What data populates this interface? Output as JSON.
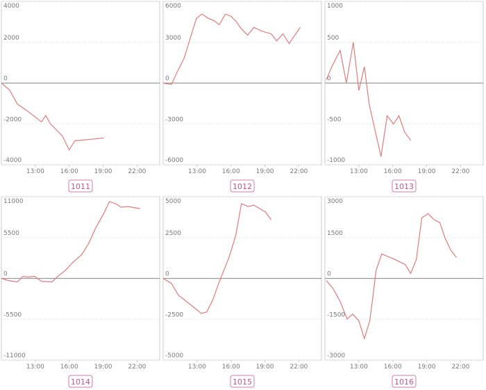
{
  "chart_data": [
    {
      "type": "line",
      "title": "1011",
      "color": "#e07b7b",
      "x": [
        10,
        10.73,
        11.41,
        12.33,
        13.55,
        13.92,
        14.35,
        15.39,
        16.0,
        16.49,
        19.06
      ],
      "values": [
        0,
        -345,
        -1030,
        -1380,
        -1900,
        -1590,
        -2000,
        -2590,
        -3280,
        -2830,
        -2690
      ],
      "xlim": [
        10,
        24
      ],
      "xticks": [
        {
          "value": 13,
          "label": "13:00"
        },
        {
          "value": 16,
          "label": "16:00"
        },
        {
          "value": 19,
          "label": "19:00"
        },
        {
          "value": 22,
          "label": "22:00"
        }
      ],
      "ylim": [
        -4000,
        4000
      ],
      "yticks": [
        -4000,
        -2000,
        0,
        2000,
        4000
      ],
      "grid": true
    },
    {
      "type": "line",
      "title": "1012",
      "color": "#e07b7b",
      "x": [
        10,
        10.73,
        11.22,
        11.84,
        12.94,
        13.43,
        13.98,
        14.47,
        14.96,
        15.51,
        16.0,
        16.43,
        16.92,
        17.47,
        18.02,
        18.57,
        19.06,
        19.55,
        20.04,
        20.59,
        21.14,
        22.12
      ],
      "values": [
        0,
        -100,
        780,
        1800,
        4760,
        5070,
        4760,
        4600,
        4290,
        5070,
        4900,
        4550,
        3980,
        3520,
        4090,
        3880,
        3720,
        3620,
        3100,
        3620,
        2900,
        4090
      ],
      "xlim": [
        10,
        24
      ],
      "xticks": [
        {
          "value": 13,
          "label": "13:00"
        },
        {
          "value": 16,
          "label": "16:00"
        },
        {
          "value": 19,
          "label": "19:00"
        },
        {
          "value": 22,
          "label": "22:00"
        }
      ],
      "ylim": [
        -6000,
        6000
      ],
      "yticks": [
        -6000,
        -3000,
        0,
        3000,
        6000
      ],
      "grid": true
    },
    {
      "type": "line",
      "title": "1013",
      "color": "#e07b7b",
      "x": [
        10.12,
        10.61,
        11.35,
        11.9,
        12.51,
        13.0,
        13.49,
        13.92,
        14.96,
        15.51,
        16.06,
        16.55,
        17.04,
        17.59
      ],
      "values": [
        40,
        200,
        400,
        0,
        500,
        -90,
        200,
        -260,
        -900,
        -400,
        -500,
        -400,
        -600,
        -700
      ],
      "xlim": [
        10,
        24
      ],
      "xticks": [
        {
          "value": 13,
          "label": "13:00"
        },
        {
          "value": 16,
          "label": "16:00"
        },
        {
          "value": 19,
          "label": "19:00"
        },
        {
          "value": 22,
          "label": "22:00"
        }
      ],
      "ylim": [
        -1000,
        1000
      ],
      "yticks": [
        -1000,
        -500,
        0,
        500,
        1000
      ],
      "grid": true
    },
    {
      "type": "line",
      "title": "1014",
      "color": "#e07b7b",
      "x": [
        10,
        10.61,
        11.41,
        11.9,
        12.33,
        12.94,
        13.55,
        14.47,
        15.08,
        15.69,
        16.31,
        17.1,
        17.72,
        18.33,
        19.06,
        19.55,
        20.1,
        20.59,
        21.21,
        22.25
      ],
      "values": [
        0,
        -280,
        -470,
        280,
        190,
        280,
        -380,
        -470,
        380,
        1130,
        2160,
        3200,
        4700,
        6770,
        8740,
        10340,
        10060,
        9590,
        9680,
        9400
      ],
      "xlim": [
        10,
        24
      ],
      "xticks": [
        {
          "value": 13,
          "label": "13:00"
        },
        {
          "value": 16,
          "label": "16:00"
        },
        {
          "value": 19,
          "label": "19:00"
        },
        {
          "value": 22,
          "label": "22:00"
        }
      ],
      "ylim": [
        -11000,
        11000
      ],
      "yticks": [
        -11000,
        -5500,
        0,
        5500,
        11000
      ],
      "grid": true
    },
    {
      "type": "line",
      "title": "1015",
      "color": "#e07b7b",
      "x": [
        10,
        10.73,
        11.35,
        12.45,
        13.37,
        13.86,
        14.41,
        14.96,
        15.82,
        16.43,
        16.92,
        17.53,
        18.02,
        19.06,
        19.55
      ],
      "values": [
        0,
        -300,
        -1030,
        -1620,
        -2140,
        -2050,
        -1280,
        -210,
        1280,
        2650,
        4570,
        4400,
        4490,
        4060,
        3590
      ],
      "xlim": [
        10,
        24
      ],
      "xticks": [
        {
          "value": 13,
          "label": "13:00"
        },
        {
          "value": 16,
          "label": "16:00"
        },
        {
          "value": 19,
          "label": "19:00"
        },
        {
          "value": 22,
          "label": "22:00"
        }
      ],
      "ylim": [
        -5000,
        5000
      ],
      "yticks": [
        -5000,
        -2500,
        0,
        2500,
        5000
      ],
      "grid": true
    },
    {
      "type": "line",
      "title": "1016",
      "color": "#e07b7b",
      "x": [
        10.12,
        10.73,
        11.35,
        11.96,
        12.45,
        13.0,
        13.49,
        13.98,
        14.53,
        15.02,
        16.06,
        17.1,
        17.59,
        18.08,
        18.57,
        19.12,
        19.67,
        20.16,
        20.65,
        21.14,
        21.63
      ],
      "values": [
        -80,
        -380,
        -850,
        -1490,
        -1310,
        -1560,
        -2210,
        -1540,
        310,
        900,
        720,
        510,
        180,
        690,
        2230,
        2380,
        2150,
        2050,
        1460,
        1030,
        770
      ],
      "xlim": [
        10,
        24
      ],
      "xticks": [
        {
          "value": 13,
          "label": "13:00"
        },
        {
          "value": 16,
          "label": "16:00"
        },
        {
          "value": 19,
          "label": "19:00"
        },
        {
          "value": 22,
          "label": "22:00"
        }
      ],
      "ylim": [
        -3000,
        3000
      ],
      "yticks": [
        -3000,
        -1500,
        0,
        1500,
        3000
      ],
      "grid": true
    }
  ]
}
